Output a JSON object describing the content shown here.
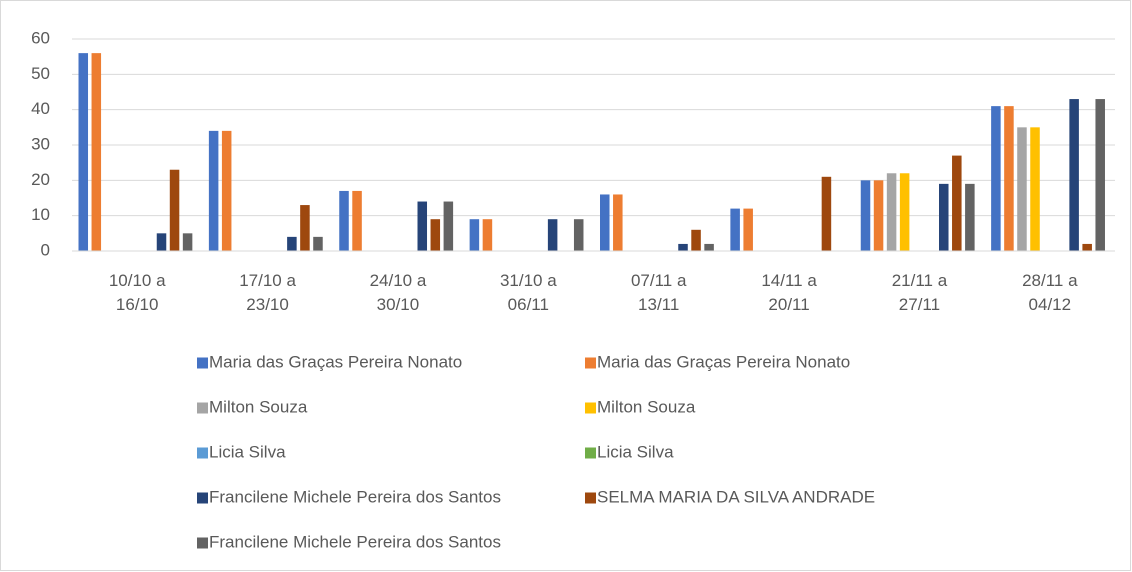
{
  "chart_data": {
    "type": "bar",
    "categories": [
      "10/10 a 16/10",
      "17/10 a 23/10",
      "24/10 a 30/10",
      "31/10 a 06/11",
      "07/11 a 13/11",
      "14/11 a 20/11",
      "21/11 a 27/11",
      "28/11 a 04/12"
    ],
    "series": [
      {
        "name": "Maria das Graças Pereira Nonato",
        "color": "#4472c4",
        "values": [
          56,
          34,
          17,
          9,
          16,
          12,
          20,
          41
        ]
      },
      {
        "name": "Maria das Graças Pereira Nonato",
        "color": "#ed7d31",
        "values": [
          56,
          34,
          17,
          9,
          16,
          12,
          20,
          41
        ]
      },
      {
        "name": "Milton Souza",
        "color": "#a5a5a5",
        "values": [
          0,
          0,
          0,
          0,
          0,
          0,
          22,
          35
        ]
      },
      {
        "name": "Milton Souza",
        "color": "#ffc000",
        "values": [
          0,
          0,
          0,
          0,
          0,
          0,
          22,
          35
        ]
      },
      {
        "name": "Licia Silva",
        "color": "#5b9bd5",
        "values": [
          0,
          0,
          0,
          0,
          0,
          0,
          0,
          0
        ]
      },
      {
        "name": "Licia Silva",
        "color": "#70ad47",
        "values": [
          0,
          0,
          0,
          0,
          0,
          0,
          0,
          0
        ]
      },
      {
        "name": "Francilene Michele Pereira dos Santos",
        "color": "#264478",
        "values": [
          5,
          4,
          14,
          9,
          2,
          0,
          19,
          43
        ]
      },
      {
        "name": "SELMA MARIA DA SILVA ANDRADE",
        "color": "#9e480e",
        "values": [
          23,
          13,
          9,
          0,
          6,
          21,
          27,
          2
        ]
      },
      {
        "name": "Francilene Michele Pereira dos Santos",
        "color": "#636363",
        "values": [
          5,
          4,
          14,
          9,
          2,
          0,
          19,
          43
        ]
      }
    ],
    "ylim": [
      0,
      60
    ],
    "yticks": [
      0,
      10,
      20,
      30,
      40,
      50,
      60
    ],
    "grid": true,
    "legend": "bottom"
  }
}
